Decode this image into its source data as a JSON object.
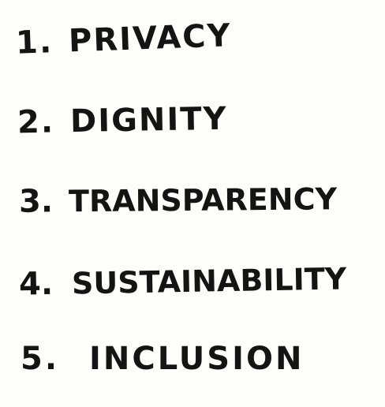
{
  "list": {
    "items": [
      {
        "number": "1.",
        "text": "PRIVACY"
      },
      {
        "number": "2.",
        "text": "DIGNITY"
      },
      {
        "number": "3.",
        "text": "TRANSPARENCY"
      },
      {
        "number": "4.",
        "text": "SUSTAINABILITY"
      },
      {
        "number": "5.",
        "text": "INCLUSION"
      }
    ]
  }
}
